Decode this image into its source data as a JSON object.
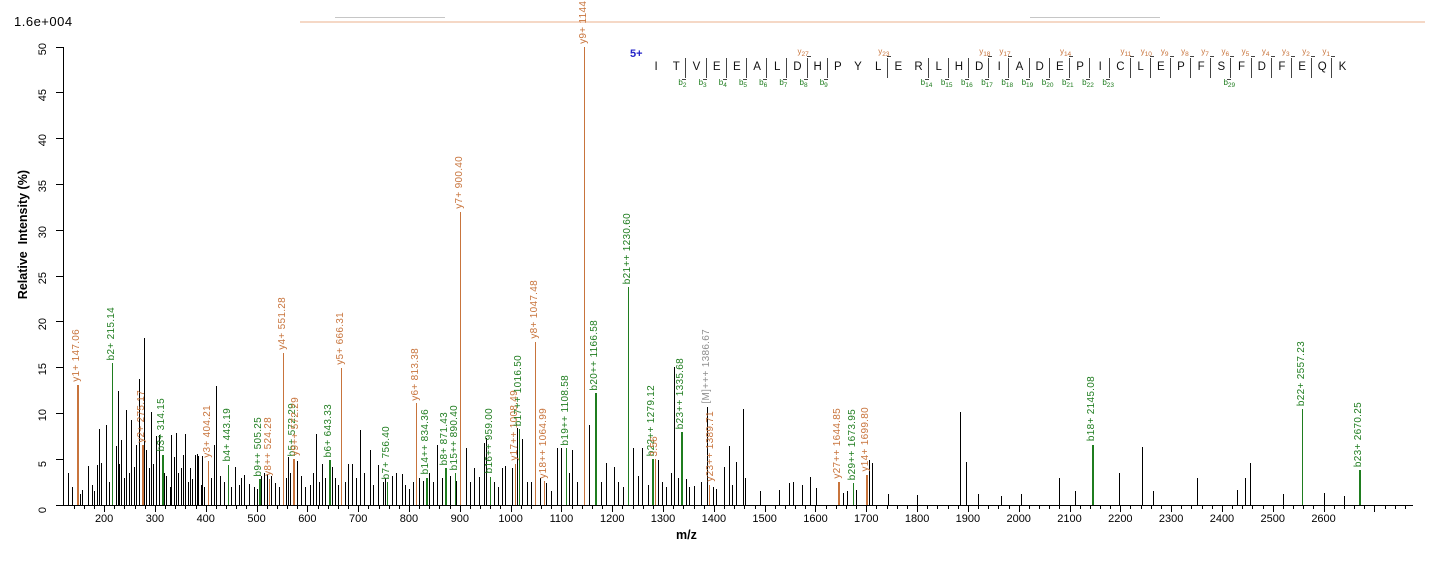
{
  "scale_note": "1.6e+004",
  "precursor_charge_label": "5+",
  "colors": {
    "b_ion": "#1f7d1f",
    "y_ion": "#c8743c",
    "precursor_label": "#8f8f8f",
    "unassigned_peak": "#000000",
    "charge_label": "#2424c8"
  },
  "peptide": {
    "sequence": "ITVEEALDHPYLERLHDIADEPICLEPFSFDFEQK",
    "residues": [
      [
        "I",
        null,
        null
      ],
      [
        "T",
        null,
        null
      ],
      [
        "V",
        null,
        "b2"
      ],
      [
        "E",
        null,
        "b3"
      ],
      [
        "E",
        null,
        "b4"
      ],
      [
        "A",
        null,
        "b5"
      ],
      [
        "L",
        null,
        "b6"
      ],
      [
        "D",
        null,
        "b7"
      ],
      [
        "H",
        "y27",
        "b8"
      ],
      [
        "P",
        null,
        "b9"
      ],
      [
        "Y",
        null,
        null
      ],
      [
        "L",
        null,
        null
      ],
      [
        "E",
        "y23",
        null
      ],
      [
        "R",
        null,
        null
      ],
      [
        "L",
        null,
        "b14"
      ],
      [
        "H",
        null,
        "b15"
      ],
      [
        "D",
        null,
        "b16"
      ],
      [
        "I",
        "y18",
        "b17"
      ],
      [
        "A",
        "y17",
        "b18"
      ],
      [
        "D",
        null,
        "b19"
      ],
      [
        "E",
        null,
        "b20"
      ],
      [
        "P",
        "y14",
        "b21"
      ],
      [
        "I",
        null,
        "b22"
      ],
      [
        "C",
        null,
        "b23"
      ],
      [
        "L",
        "y11",
        null
      ],
      [
        "E",
        "y10",
        null
      ],
      [
        "P",
        "y9",
        null
      ],
      [
        "F",
        "y8",
        null
      ],
      [
        "S",
        "y7",
        null
      ],
      [
        "F",
        "y6",
        "b29"
      ],
      [
        "D",
        "y5",
        null
      ],
      [
        "F",
        "y4",
        null
      ],
      [
        "E",
        "y3",
        null
      ],
      [
        "Q",
        "y2",
        null
      ],
      [
        "K",
        "y1",
        null
      ]
    ]
  },
  "chart_data": {
    "type": "bar",
    "chart_kind": "MS/MS annotated peptide fragmentation spectrum",
    "title": "",
    "xlabel": "m/z",
    "ylabel": "Relative  Intensity (%)",
    "xlim": [
      121,
      2776
    ],
    "ylim": [
      0,
      50
    ],
    "y_ticks": [
      0,
      5,
      10,
      15,
      20,
      25,
      30,
      35,
      40,
      45,
      50
    ],
    "x_tick_labels": [
      200,
      300,
      400,
      500,
      600,
      700,
      800,
      900,
      1000,
      1100,
      1200,
      1300,
      1400,
      1500,
      1600,
      1700,
      1800,
      1900,
      2000,
      2100,
      2200,
      2300,
      2400,
      2500,
      2600
    ],
    "x_minor_tick_step": 20,
    "grid": false,
    "labeled_peaks": [
      {
        "label": "y1+ 147.06",
        "mz": 147.06,
        "intensity": 13.1,
        "ion": "y"
      },
      {
        "label": "b2+ 215.14",
        "mz": 215.14,
        "intensity": 15.5,
        "ion": "b"
      },
      {
        "label": "y2+ 275.17",
        "mz": 275.17,
        "intensity": 6.5,
        "ion": "y"
      },
      {
        "label": "b3+ 314.15",
        "mz": 314.15,
        "intensity": 5.5,
        "ion": "b"
      },
      {
        "label": "y3+ 404.21",
        "mz": 404.21,
        "intensity": 4.8,
        "ion": "y"
      },
      {
        "label": "b4+ 443.19",
        "mz": 443.19,
        "intensity": 4.4,
        "ion": "b"
      },
      {
        "label": "b9++ 505.25",
        "mz": 505.25,
        "intensity": 2.8,
        "ion": "b"
      },
      {
        "label": "y8++ 524.28",
        "mz": 524.28,
        "intensity": 2.8,
        "ion": "y"
      },
      {
        "label": "y4+ 551.28",
        "mz": 551.28,
        "intensity": 16.6,
        "ion": "y"
      },
      {
        "label": "b5+ 572.29",
        "mz": 572.29,
        "intensity": 5.0,
        "ion": "b"
      },
      {
        "label": "y9++ 572.29",
        "mz": 572.29,
        "placement_mz": 578.5,
        "intensity": 5.0,
        "ion": "y"
      },
      {
        "label": "b6+ 643.33",
        "mz": 643.33,
        "intensity": 4.9,
        "ion": "b"
      },
      {
        "label": "y5+ 666.31",
        "mz": 666.31,
        "intensity": 15.0,
        "ion": "y"
      },
      {
        "label": "b7+ 756.40",
        "mz": 756.4,
        "intensity": 2.5,
        "ion": "b"
      },
      {
        "label": "y6+ 813.38",
        "mz": 813.38,
        "intensity": 11.1,
        "ion": "y"
      },
      {
        "label": "b14++ 834.36",
        "mz": 834.36,
        "intensity": 3.0,
        "ion": "b"
      },
      {
        "label": "b8+ 871.43",
        "mz": 871.43,
        "intensity": 4.0,
        "ion": "b"
      },
      {
        "label": "b15++ 890.40",
        "mz": 890.4,
        "intensity": 3.5,
        "ion": "b"
      },
      {
        "label": "y7+ 900.40",
        "mz": 900.4,
        "intensity": 32.0,
        "ion": "y"
      },
      {
        "label": "b16++ 959.00",
        "mz": 959.0,
        "intensity": 3.1,
        "ion": "b"
      },
      {
        "label": "y17++ 1008.49",
        "mz": 1008.49,
        "intensity": 4.5,
        "ion": "y"
      },
      {
        "label": "b17++ 1016.50",
        "mz": 1016.5,
        "intensity": 8.3,
        "ion": "b"
      },
      {
        "label": "y8+ 1047.48",
        "mz": 1047.48,
        "intensity": 17.8,
        "ion": "y"
      },
      {
        "label": "y18++ 1064.99",
        "mz": 1064.99,
        "intensity": 2.6,
        "ion": "y"
      },
      {
        "label": "b19++ 1108.58",
        "mz": 1108.58,
        "intensity": 6.2,
        "ion": "b"
      },
      {
        "label": "y9+ 1144.50",
        "mz": 1144.5,
        "intensity": 50.0,
        "ion": "y"
      },
      {
        "label": "b20++ 1166.58",
        "mz": 1166.58,
        "intensity": 12.2,
        "ion": "b"
      },
      {
        "label": "b21++ 1230.60",
        "mz": 1230.6,
        "intensity": 23.8,
        "ion": "b"
      },
      {
        "label": "b22++ 1279.12",
        "mz": 1279.12,
        "intensity": 5.0,
        "ion": "b"
      },
      {
        "label": "3.56",
        "mz": 1283.56,
        "intensity": 5.0,
        "ion": "y",
        "note": "label partially obscured by b22++ label"
      },
      {
        "label": "b23++ 1335.68",
        "mz": 1335.68,
        "intensity": 8.0,
        "ion": "b"
      },
      {
        "label": "[M]+++ 1386.67",
        "mz": 1386.67,
        "intensity": 10.7,
        "ion": "M"
      },
      {
        "label": "y23++ 1389.71",
        "mz": 1389.71,
        "placement_mz": 1395.0,
        "intensity": 2.2,
        "ion": "y"
      },
      {
        "label": "y27++ 1644.85",
        "mz": 1644.85,
        "intensity": 2.5,
        "ion": "y"
      },
      {
        "label": "b29++ 1673.95",
        "mz": 1673.95,
        "intensity": 2.4,
        "ion": "b"
      },
      {
        "label": "y14+ 1699.80",
        "mz": 1699.8,
        "intensity": 3.3,
        "ion": "y"
      },
      {
        "label": "b18+ 2145.08",
        "mz": 2145.08,
        "intensity": 6.6,
        "ion": "b"
      },
      {
        "label": "b22+ 2557.23",
        "mz": 2557.23,
        "intensity": 10.5,
        "ion": "b"
      },
      {
        "label": "b23+ 2670.25",
        "mz": 2670.25,
        "intensity": 3.8,
        "ion": "b"
      }
    ],
    "unlabeled_peaks": [
      [
        128,
        3.5
      ],
      [
        136,
        2.0
      ],
      [
        152,
        1.2
      ],
      [
        157,
        1.6
      ],
      [
        169,
        4.3
      ],
      [
        176,
        2.2
      ],
      [
        181,
        1.5
      ],
      [
        186,
        4.4
      ],
      [
        190,
        8.3
      ],
      [
        194,
        4.6
      ],
      [
        204,
        8.7
      ],
      [
        209,
        2.5
      ],
      [
        224,
        6.4
      ],
      [
        228,
        12.5
      ],
      [
        230,
        4.5
      ],
      [
        234,
        7.1
      ],
      [
        240,
        3.0
      ],
      [
        244,
        10.4
      ],
      [
        249,
        3.5
      ],
      [
        253,
        9.3
      ],
      [
        258,
        4.2
      ],
      [
        263,
        6.5
      ],
      [
        269,
        13.8
      ],
      [
        278,
        18.2
      ],
      [
        283,
        6.0
      ],
      [
        288,
        4.0
      ],
      [
        292,
        10.2
      ],
      [
        297,
        4.5
      ],
      [
        302,
        7.5
      ],
      [
        308,
        7.6
      ],
      [
        318,
        3.5
      ],
      [
        322,
        3.2
      ],
      [
        330,
        2.0
      ],
      [
        332,
        7.6
      ],
      [
        337,
        5.2
      ],
      [
        341,
        7.9
      ],
      [
        345,
        3.5
      ],
      [
        352,
        4.0
      ],
      [
        356,
        5.5
      ],
      [
        360,
        7.8
      ],
      [
        366,
        2.5
      ],
      [
        369,
        4.0
      ],
      [
        372,
        2.8
      ],
      [
        378,
        5.5
      ],
      [
        382,
        5.6
      ],
      [
        385,
        5.3
      ],
      [
        390,
        2.2
      ],
      [
        392,
        5.4
      ],
      [
        397,
        2.0
      ],
      [
        410,
        3.0
      ],
      [
        416,
        6.6
      ],
      [
        420,
        13.0
      ],
      [
        428,
        3.2
      ],
      [
        436,
        2.5
      ],
      [
        450,
        2.0
      ],
      [
        458,
        4.2
      ],
      [
        465,
        2.2
      ],
      [
        470,
        3.0
      ],
      [
        476,
        3.3
      ],
      [
        485,
        2.3
      ],
      [
        494,
        2.0
      ],
      [
        500,
        1.8
      ],
      [
        508,
        3.2
      ],
      [
        515,
        3.5
      ],
      [
        520,
        3.4
      ],
      [
        528,
        3.2
      ],
      [
        536,
        2.4
      ],
      [
        544,
        2.0
      ],
      [
        558,
        3.0
      ],
      [
        562,
        5.2
      ],
      [
        566,
        3.5
      ],
      [
        580,
        4.8
      ],
      [
        588,
        3.2
      ],
      [
        596,
        2.0
      ],
      [
        605,
        2.2
      ],
      [
        612,
        3.5
      ],
      [
        616,
        7.7
      ],
      [
        622,
        2.5
      ],
      [
        628,
        4.5
      ],
      [
        635,
        3.0
      ],
      [
        648,
        4.1
      ],
      [
        655,
        3.0
      ],
      [
        660,
        2.2
      ],
      [
        674,
        2.5
      ],
      [
        680,
        4.5
      ],
      [
        688,
        4.5
      ],
      [
        696,
        3.0
      ],
      [
        704,
        8.2
      ],
      [
        712,
        3.5
      ],
      [
        724,
        6.0
      ],
      [
        730,
        2.2
      ],
      [
        739,
        4.4
      ],
      [
        748,
        2.5
      ],
      [
        752,
        3.0
      ],
      [
        766,
        3.2
      ],
      [
        775,
        3.5
      ],
      [
        786,
        3.4
      ],
      [
        793,
        2.2
      ],
      [
        800,
        1.8
      ],
      [
        808,
        2.5
      ],
      [
        820,
        3.0
      ],
      [
        828,
        2.6
      ],
      [
        840,
        3.5
      ],
      [
        848,
        2.5
      ],
      [
        855,
        6.6
      ],
      [
        865,
        3.0
      ],
      [
        880,
        3.2
      ],
      [
        893,
        2.6
      ],
      [
        912,
        6.2
      ],
      [
        920,
        2.5
      ],
      [
        927,
        4.0
      ],
      [
        938,
        3.1
      ],
      [
        947,
        6.8
      ],
      [
        952,
        7.3
      ],
      [
        968,
        2.5
      ],
      [
        975,
        2.0
      ],
      [
        983,
        4.0
      ],
      [
        989,
        4.3
      ],
      [
        1002,
        4.0
      ],
      [
        1012,
        8.4
      ],
      [
        1022,
        7.2
      ],
      [
        1032,
        2.5
      ],
      [
        1040,
        2.5
      ],
      [
        1058,
        3.0
      ],
      [
        1070,
        2.4
      ],
      [
        1080,
        1.5
      ],
      [
        1092,
        6.2
      ],
      [
        1100,
        6.2
      ],
      [
        1114,
        3.5
      ],
      [
        1121,
        6.0
      ],
      [
        1131,
        2.5
      ],
      [
        1155,
        8.7
      ],
      [
        1178,
        2.5
      ],
      [
        1188,
        4.6
      ],
      [
        1204,
        4.2
      ],
      [
        1212,
        2.5
      ],
      [
        1222,
        2.0
      ],
      [
        1241,
        6.2
      ],
      [
        1250,
        3.2
      ],
      [
        1259,
        6.2
      ],
      [
        1270,
        2.2
      ],
      [
        1290,
        4.9
      ],
      [
        1298,
        2.5
      ],
      [
        1306,
        2.0
      ],
      [
        1315,
        3.5
      ],
      [
        1322,
        15.1
      ],
      [
        1330,
        3.0
      ],
      [
        1345,
        2.8
      ],
      [
        1352,
        2.0
      ],
      [
        1360,
        2.1
      ],
      [
        1374,
        2.5
      ],
      [
        1398,
        2.0
      ],
      [
        1405,
        1.8
      ],
      [
        1420,
        4.1
      ],
      [
        1430,
        6.4
      ],
      [
        1436,
        2.2
      ],
      [
        1443,
        4.7
      ],
      [
        1457,
        10.5
      ],
      [
        1462,
        3.0
      ],
      [
        1490,
        1.5
      ],
      [
        1528,
        1.6
      ],
      [
        1547,
        2.4
      ],
      [
        1556,
        2.5
      ],
      [
        1573,
        2.2
      ],
      [
        1590,
        3.1
      ],
      [
        1602,
        1.9
      ],
      [
        1655,
        1.3
      ],
      [
        1662,
        1.5
      ],
      [
        1680,
        1.6
      ],
      [
        1705,
        4.9
      ],
      [
        1712,
        4.6
      ],
      [
        1742,
        1.2
      ],
      [
        1800,
        1.1
      ],
      [
        1884,
        10.2
      ],
      [
        1896,
        4.7
      ],
      [
        1920,
        1.2
      ],
      [
        1965,
        1.0
      ],
      [
        2005,
        1.2
      ],
      [
        2080,
        3.0
      ],
      [
        2110,
        1.5
      ],
      [
        2198,
        3.5
      ],
      [
        2243,
        6.3
      ],
      [
        2265,
        1.5
      ],
      [
        2351,
        2.9
      ],
      [
        2430,
        1.6
      ],
      [
        2445,
        2.9
      ],
      [
        2455,
        4.6
      ],
      [
        2520,
        1.2
      ],
      [
        2600,
        1.3
      ],
      [
        2640,
        1.0
      ]
    ]
  }
}
